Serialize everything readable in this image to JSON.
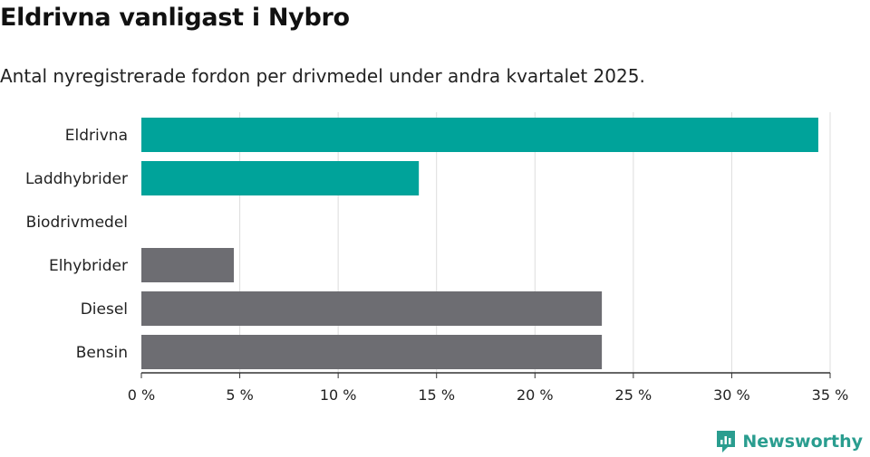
{
  "title": "Eldrivna vanligast i Nybro",
  "subtitle": "Antal nyregistrerade fordon per drivmedel under andra kvartalet 2025.",
  "brand": {
    "name": "Newsworthy",
    "icon": "bar-chart-logo-icon"
  },
  "colors": {
    "highlight": "#00a39a",
    "other": "#6d6d72",
    "grid": "#dddddd",
    "axis": "#333333"
  },
  "chart_data": {
    "type": "bar",
    "orientation": "horizontal",
    "categories": [
      "Eldrivna",
      "Laddhybrider",
      "Biodrivmedel",
      "Elhybrider",
      "Diesel",
      "Bensin"
    ],
    "values": [
      34.4,
      14.1,
      0,
      4.7,
      23.4,
      23.4
    ],
    "highlight": [
      true,
      true,
      false,
      false,
      false,
      false
    ],
    "xlim": [
      0,
      35
    ],
    "xticks": [
      0,
      5,
      10,
      15,
      20,
      25,
      30,
      35
    ],
    "xtick_labels": [
      "0 %",
      "5 %",
      "10 %",
      "15 %",
      "20 %",
      "25 %",
      "30 %",
      "35 %"
    ],
    "grid": true,
    "xlabel": "",
    "ylabel": ""
  }
}
